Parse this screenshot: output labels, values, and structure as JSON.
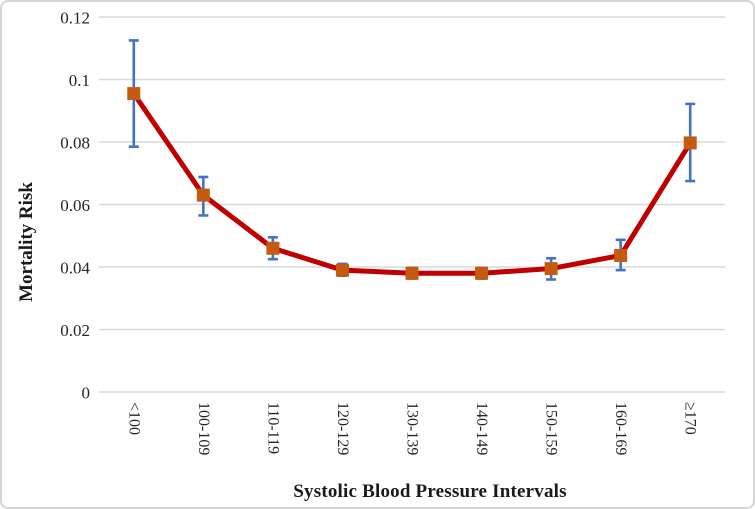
{
  "chart": {
    "y_axis_title": "Mortality Risk",
    "x_axis_title": "Systolic Blood Pressure Intervals"
  },
  "colors": {
    "line": "#c00000",
    "marker": "#c55a11",
    "error_bar": "#4472c4",
    "gridline": "#d9d9d9",
    "tick_text": "#262626"
  },
  "chart_data": {
    "type": "line",
    "title": "",
    "xlabel": "Systolic Blood Pressure Intervals",
    "ylabel": "Mortality Risk",
    "categories": [
      "<100",
      "100-109",
      "110-119",
      "120-129",
      "130-139",
      "140-149",
      "150-159",
      "160-169",
      "≥170"
    ],
    "values": [
      0.0955,
      0.063,
      0.046,
      0.039,
      0.038,
      0.038,
      0.0395,
      0.0437,
      0.0797
    ],
    "error_low": [
      0.0785,
      0.0565,
      0.0425,
      0.0372,
      0.0363,
      0.0363,
      0.036,
      0.039,
      0.0675
    ],
    "error_high": [
      0.1125,
      0.0688,
      0.0495,
      0.041,
      0.0397,
      0.0397,
      0.0428,
      0.0487,
      0.0922
    ],
    "ylim": [
      0,
      0.12
    ],
    "y_ticks": [
      {
        "value": 0,
        "label": "0"
      },
      {
        "value": 0.02,
        "label": "0.02"
      },
      {
        "value": 0.04,
        "label": "0.04"
      },
      {
        "value": 0.06,
        "label": "0.06"
      },
      {
        "value": 0.08,
        "label": "0.08"
      },
      {
        "value": 0.1,
        "label": "0.1"
      },
      {
        "value": 0.12,
        "label": "0.12"
      }
    ],
    "grid": true,
    "legend": false,
    "marker": "square",
    "error_bars": true,
    "legend_position": "none"
  }
}
